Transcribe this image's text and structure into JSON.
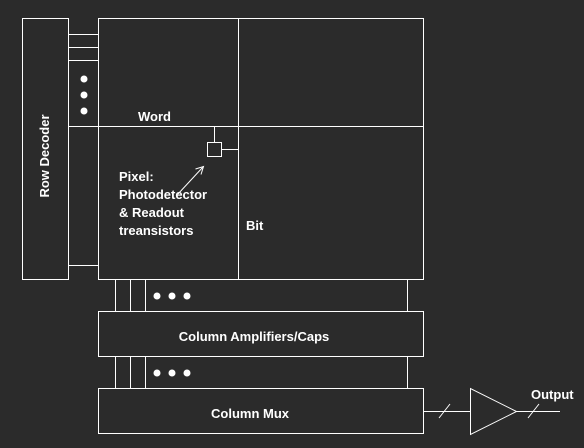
{
  "diagram": {
    "row_decoder": "Row Decoder",
    "word": "Word",
    "bit": "Bit",
    "pixel_label": [
      "Pixel:",
      "Photodetector",
      "& Readout",
      "treansistors"
    ],
    "column_amplifiers": "Column Amplifiers/Caps",
    "column_mux": "Column Mux",
    "output": "Output",
    "line_color": "#ffffff",
    "background": "#2b2b2b"
  }
}
